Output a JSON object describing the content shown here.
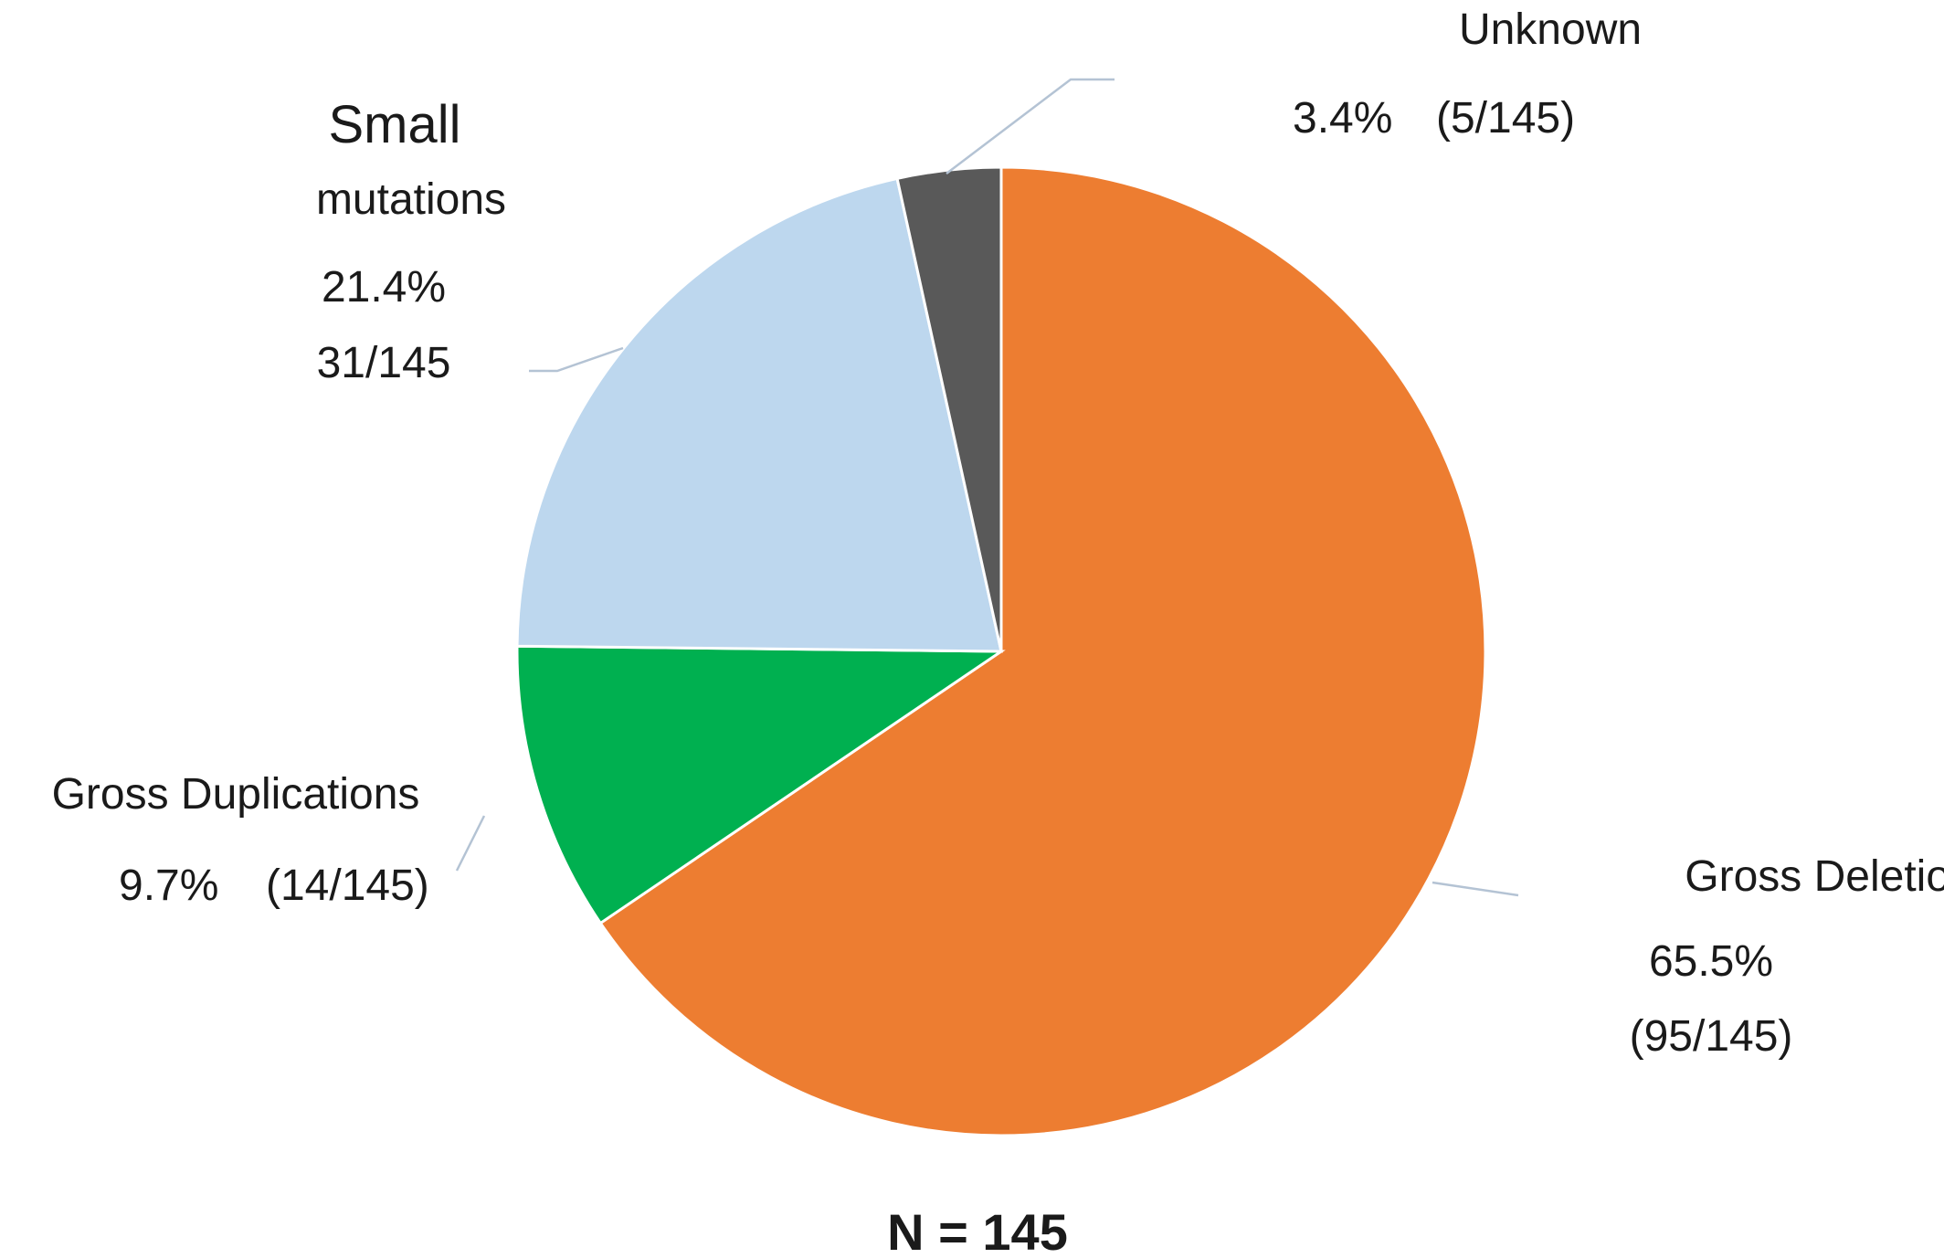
{
  "chart_data": {
    "type": "pie",
    "footer": "N = 145",
    "slices": [
      {
        "name": "Gross Deletions",
        "percent_label": "65.5%",
        "count_label": "(95/145)",
        "value": 95,
        "color": "#ED7D31"
      },
      {
        "name": "Gross Duplications",
        "percent_label": "9.7%",
        "count_label": "(14/145)",
        "value": 14,
        "color": "#00B050"
      },
      {
        "name": "Small",
        "name_line2": "mutations",
        "percent_label": "21.4%",
        "count_label": "31/145",
        "value": 31,
        "color": "#BDD7EE"
      },
      {
        "name": "Unknown",
        "percent_label": "3.4%",
        "count_label": "(5/145)",
        "value": 5,
        "color": "#595959"
      }
    ]
  }
}
